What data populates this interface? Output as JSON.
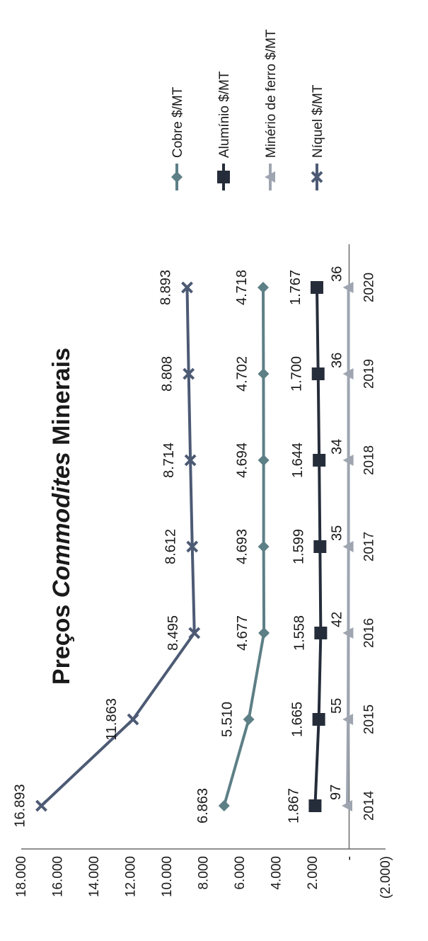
{
  "chart_data": {
    "type": "line",
    "title_prefix": "Preços ",
    "title_emphasis": "Commodites",
    "title_suffix": " Minerais",
    "categories": [
      "2014",
      "2015",
      "2016",
      "2017",
      "2018",
      "2019",
      "2020"
    ],
    "y_ticks": [
      "18.000",
      "16.000",
      "14.000",
      "12.000",
      "10.000",
      "8.000",
      "6.000",
      "4.000",
      "2.000",
      "-",
      "(2.000)"
    ],
    "ylim": [
      -2000,
      18000
    ],
    "grid": false,
    "legend_position": "right",
    "series": [
      {
        "name": "Cobre $/MT",
        "color": "#5d7f86",
        "marker": "diamond",
        "values": [
          6863,
          5510,
          4677,
          4693,
          4694,
          4702,
          4718
        ],
        "labels": [
          "6.863",
          "5.510",
          "4.677",
          "4.693",
          "4.694",
          "4.702",
          "4.718"
        ]
      },
      {
        "name": "Alumínio $/MT",
        "color": "#262d3a",
        "marker": "square",
        "values": [
          1867,
          1665,
          1558,
          1599,
          1644,
          1700,
          1767
        ],
        "labels": [
          "1.867",
          "1.665",
          "1.558",
          "1.599",
          "1.644",
          "1.700",
          "1.767"
        ]
      },
      {
        "name": "Minério de ferro $/MT",
        "color": "#9ea5b0",
        "marker": "triangle",
        "values": [
          97,
          55,
          42,
          35,
          34,
          36,
          36
        ],
        "labels": [
          "97",
          "55",
          "42",
          "35",
          "34",
          "36",
          "36"
        ]
      },
      {
        "name": "Níquel $/MT",
        "color": "#4d5a74",
        "marker": "x",
        "values": [
          16893,
          11863,
          8495,
          8612,
          8714,
          8808,
          8893
        ],
        "labels": [
          "16.893",
          "11.863",
          "8.495",
          "8.612",
          "8.714",
          "8.808",
          "8.893"
        ]
      }
    ]
  }
}
